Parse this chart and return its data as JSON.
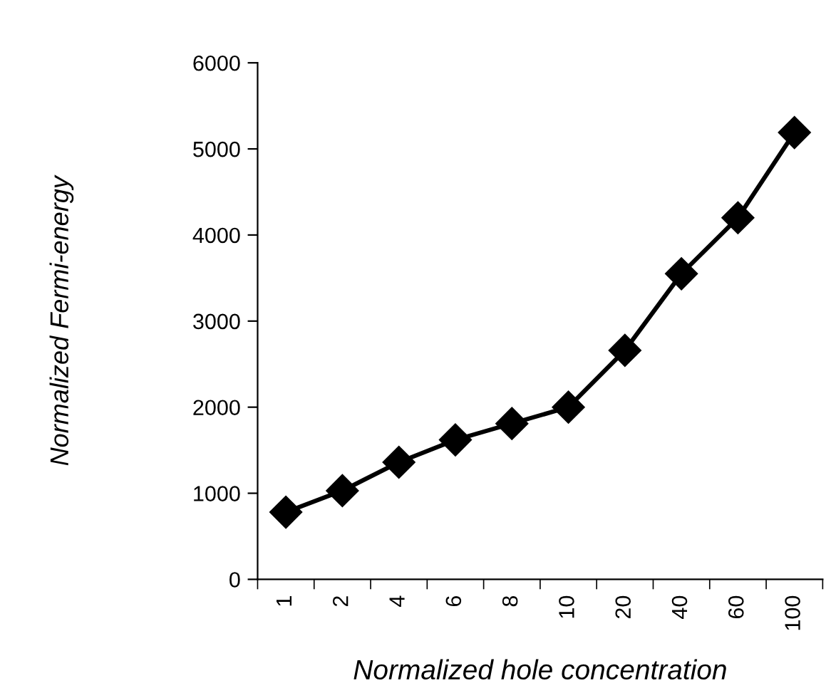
{
  "chart_data": {
    "type": "line",
    "xlabel": "Normalized hole concentration",
    "ylabel": "Normalized Fermi-energy",
    "categories": [
      "1",
      "2",
      "4",
      "6",
      "8",
      "10",
      "20",
      "40",
      "60",
      "100"
    ],
    "series": [
      {
        "color": "#000000",
        "values": [
          780,
          1030,
          1360,
          1620,
          1810,
          2000,
          2660,
          3550,
          4200,
          5190
        ]
      }
    ],
    "ylim": [
      0,
      6000
    ],
    "yticks": [
      0,
      1000,
      2000,
      3000,
      4000,
      5000,
      6000
    ],
    "grid": false,
    "marker": "diamond",
    "line_style": "solid"
  }
}
